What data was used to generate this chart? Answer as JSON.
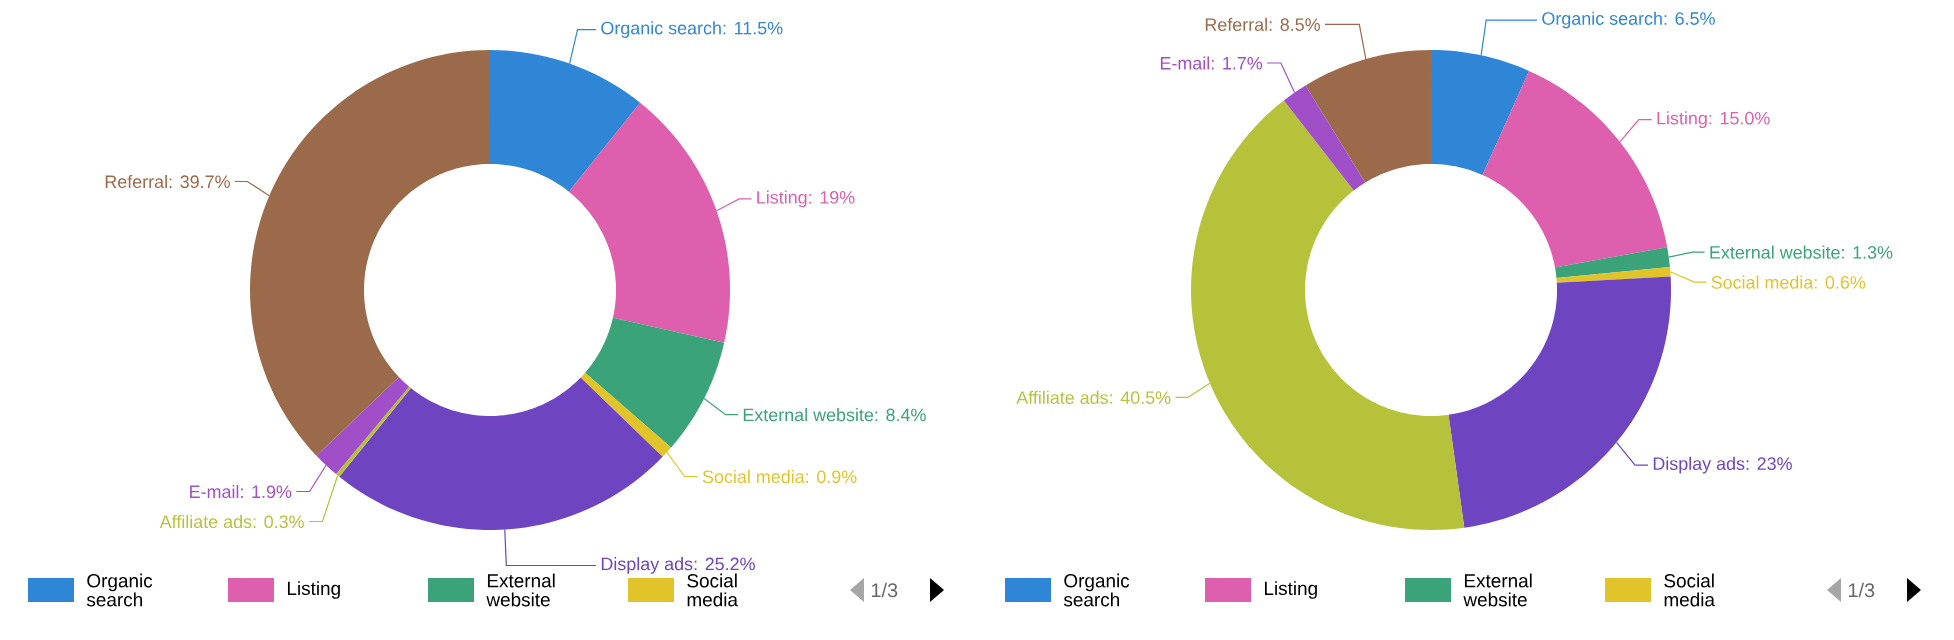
{
  "chart_data": [
    {
      "type": "donut",
      "categories": [
        "Organic search",
        "Listing",
        "External website",
        "Social media",
        "Display ads",
        "Affiliate ads",
        "E-mail",
        "Referral"
      ],
      "values": [
        11.5,
        19,
        8.4,
        0.9,
        25.2,
        0.3,
        1.9,
        39.7
      ],
      "value_labels": [
        ": 11.5%",
        ": 19%",
        ": 8.4%",
        ": 0.9%",
        ": 25.2%",
        ": 0.3%",
        ": 1.9%",
        ": 39.7%"
      ],
      "colors": [
        "#2f86d6",
        "#dd5fae",
        "#3aa37a",
        "#e0c42a",
        "#6e44c0",
        "#b5c23a",
        "#a14fc9",
        "#9a6a4a"
      ],
      "legend": "bottom",
      "annotations": [
        "1/3"
      ]
    },
    {
      "type": "donut",
      "categories": [
        "Organic search",
        "Listing",
        "External website",
        "Social media",
        "Display ads",
        "Affiliate ads",
        "E-mail",
        "Referral"
      ],
      "values": [
        6.5,
        15.0,
        1.3,
        0.6,
        23,
        40.5,
        1.7,
        8.5
      ],
      "value_labels": [
        ": 6.5%",
        ": 15.0%",
        ": 1.3%",
        ": 0.6%",
        ": 23%",
        ": 40.5%",
        ": 1.7%",
        ": 8.5%"
      ],
      "colors": [
        "#2f86d6",
        "#dd5fae",
        "#3aa37a",
        "#e0c42a",
        "#6e44c0",
        "#b5c23a",
        "#a14fc9",
        "#9a6a4a"
      ],
      "legend": "bottom",
      "annotations": [
        "1/3"
      ]
    }
  ]
}
